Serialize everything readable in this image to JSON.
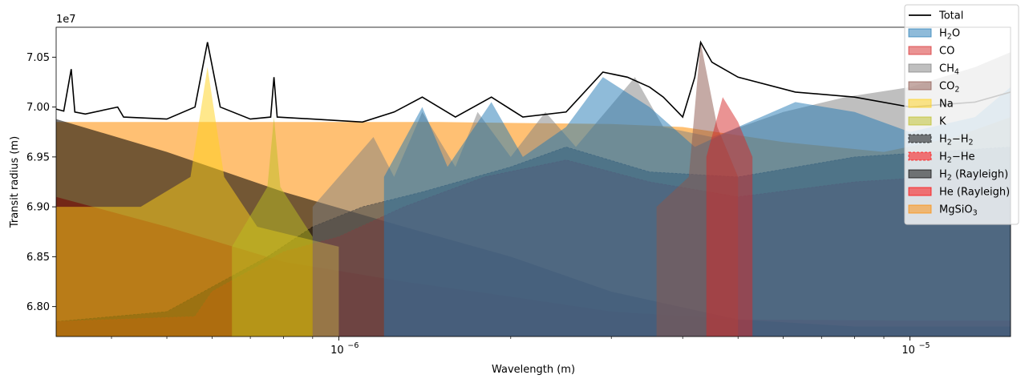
{
  "chart_data": {
    "type": "area",
    "x_scale": "log",
    "xlim": [
      3.2e-07,
      1.5e-05
    ],
    "ylim": [
      67700000,
      70800000
    ],
    "xlabel": "Wavelength (m)",
    "ylabel": "Transit radius (m)",
    "y_offset_label": "1e7",
    "x_ticks": [
      {
        "value": 1e-06,
        "label": "10",
        "exp": "−6"
      },
      {
        "value": 1e-05,
        "label": "10",
        "exp": "−5"
      }
    ],
    "y_ticks": [
      {
        "value": 68000000,
        "label": "6.80"
      },
      {
        "value": 68500000,
        "label": "6.85"
      },
      {
        "value": 69000000,
        "label": "6.90"
      },
      {
        "value": 69500000,
        "label": "6.95"
      },
      {
        "value": 70000000,
        "label": "7.00"
      },
      {
        "value": 70500000,
        "label": "7.05"
      }
    ],
    "legend_position": "upper right",
    "legend": [
      {
        "key": "total",
        "label": "Total"
      },
      {
        "key": "h2o",
        "label": "H",
        "sub": "2",
        "rest": "O"
      },
      {
        "key": "co",
        "label": "CO"
      },
      {
        "key": "ch4",
        "label": "CH",
        "sub": "4"
      },
      {
        "key": "co2",
        "label": "CO",
        "sub": "2"
      },
      {
        "key": "na",
        "label": "Na"
      },
      {
        "key": "k",
        "label": "K"
      },
      {
        "key": "h2h2",
        "label": "H",
        "sub": "2",
        "rest": "−H",
        "sub2": "2"
      },
      {
        "key": "h2he",
        "label": "H",
        "sub": "2",
        "rest": "−He"
      },
      {
        "key": "h2ray",
        "label": "H",
        "sub": "2",
        "rest": " (Rayleigh)"
      },
      {
        "key": "heray",
        "label": "He (Rayleigh)"
      },
      {
        "key": "mgsio3",
        "label": "MgSiO",
        "sub": "3"
      }
    ],
    "colors": {
      "total": "#000000",
      "h2o": "#1f77b4",
      "co": "#d62728",
      "ch4": "#7f7f7f",
      "co2": "#8c564b",
      "na": "#ffd11a",
      "k": "#bcbd22",
      "h2h2": "#000000",
      "h2he": "#ff0000",
      "h2ray": "#000000",
      "heray": "#ff0000",
      "mgsio3": "#ff8c00"
    },
    "series": [
      {
        "key": "mgsio3",
        "name": "MgSiO3",
        "points": [
          [
            3.2e-07,
            69850000
          ],
          [
            6e-07,
            69850000
          ],
          [
            1.5e-06,
            69850000
          ],
          [
            3e-06,
            69830000
          ],
          [
            4e-06,
            69800000
          ],
          [
            6e-06,
            69650000
          ],
          [
            9e-06,
            69550000
          ],
          [
            1.2e-05,
            69700000
          ],
          [
            1.5e-05,
            69900000
          ]
        ]
      },
      {
        "key": "heray",
        "name": "He (Rayleigh)",
        "points": [
          [
            3.2e-07,
            69100000
          ],
          [
            5e-07,
            68800000
          ],
          [
            8e-07,
            68450000
          ],
          [
            1.3e-06,
            68250000
          ],
          [
            2e-06,
            68100000
          ],
          [
            3e-06,
            67950000
          ],
          [
            5e-06,
            67870000
          ],
          [
            1e-05,
            67860000
          ],
          [
            1.5e-05,
            67860000
          ]
        ]
      },
      {
        "key": "h2ray",
        "name": "H2 (Rayleigh)",
        "points": [
          [
            3.2e-07,
            69880000
          ],
          [
            5e-07,
            69550000
          ],
          [
            8e-07,
            69150000
          ],
          [
            1.3e-06,
            68800000
          ],
          [
            2e-06,
            68500000
          ],
          [
            3e-06,
            68150000
          ],
          [
            5e-06,
            67870000
          ],
          [
            8e-06,
            67800000
          ],
          [
            1.5e-05,
            67800000
          ]
        ]
      },
      {
        "key": "h2he",
        "name": "H2−He",
        "points": [
          [
            3.2e-07,
            67850000
          ],
          [
            5.6e-07,
            67900000
          ],
          [
            6e-07,
            68150000
          ],
          [
            8e-07,
            68550000
          ],
          [
            1e-06,
            68700000
          ],
          [
            1.3e-06,
            69000000
          ],
          [
            1.8e-06,
            69300000
          ],
          [
            2.5e-06,
            69470000
          ],
          [
            3.5e-06,
            69250000
          ],
          [
            5e-06,
            69100000
          ],
          [
            8e-06,
            69250000
          ],
          [
            1.5e-05,
            69350000
          ]
        ]
      },
      {
        "key": "h2h2",
        "name": "H2−H2",
        "points": [
          [
            3.2e-07,
            67850000
          ],
          [
            5e-07,
            67950000
          ],
          [
            7.5e-07,
            68500000
          ],
          [
            9e-07,
            68800000
          ],
          [
            1.1e-06,
            69000000
          ],
          [
            1.4e-06,
            69150000
          ],
          [
            2e-06,
            69400000
          ],
          [
            2.5e-06,
            69600000
          ],
          [
            3.5e-06,
            69350000
          ],
          [
            5e-06,
            69300000
          ],
          [
            8e-06,
            69500000
          ],
          [
            1.5e-05,
            69600000
          ]
        ]
      },
      {
        "key": "na",
        "name": "Na",
        "points": [
          [
            3.2e-07,
            69000000
          ],
          [
            4.5e-07,
            69000000
          ],
          [
            5.5e-07,
            69300000
          ],
          [
            5.89e-07,
            70400000
          ],
          [
            6.3e-07,
            69300000
          ],
          [
            7.2e-07,
            68800000
          ],
          [
            1e-06,
            68600000
          ]
        ]
      },
      {
        "key": "k",
        "name": "K",
        "points": [
          [
            6.5e-07,
            68600000
          ],
          [
            7.5e-07,
            69200000
          ],
          [
            7.7e-07,
            69900000
          ],
          [
            7.9e-07,
            69200000
          ],
          [
            9e-07,
            68700000
          ]
        ]
      },
      {
        "key": "ch4",
        "name": "CH4",
        "points": [
          [
            9e-07,
            69000000
          ],
          [
            1e-06,
            69300000
          ],
          [
            1.15e-06,
            69700000
          ],
          [
            1.25e-06,
            69300000
          ],
          [
            1.4e-06,
            69950000
          ],
          [
            1.6e-06,
            69400000
          ],
          [
            1.75e-06,
            69950000
          ],
          [
            2e-06,
            69500000
          ],
          [
            2.3e-06,
            69950000
          ],
          [
            2.6e-06,
            69600000
          ],
          [
            3.3e-06,
            70300000
          ],
          [
            3.7e-06,
            69800000
          ],
          [
            4.5e-06,
            69700000
          ],
          [
            6e-06,
            69950000
          ],
          [
            7.7e-06,
            70100000
          ],
          [
            1e-05,
            70200000
          ],
          [
            1.3e-05,
            70400000
          ],
          [
            1.5e-05,
            70550000
          ]
        ]
      },
      {
        "key": "h2o",
        "name": "H2O",
        "points": [
          [
            1.2e-06,
            69300000
          ],
          [
            1.4e-06,
            70000000
          ],
          [
            1.55e-06,
            69400000
          ],
          [
            1.85e-06,
            70050000
          ],
          [
            2.1e-06,
            69500000
          ],
          [
            2.5e-06,
            69800000
          ],
          [
            2.9e-06,
            70300000
          ],
          [
            3.5e-06,
            70000000
          ],
          [
            4.2e-06,
            69600000
          ],
          [
            5e-06,
            69800000
          ],
          [
            6.3e-06,
            70050000
          ],
          [
            8e-06,
            69950000
          ],
          [
            1e-05,
            69750000
          ],
          [
            1.3e-05,
            69900000
          ],
          [
            1.5e-05,
            70200000
          ]
        ]
      },
      {
        "key": "co2",
        "name": "CO2",
        "points": [
          [
            3.6e-06,
            69000000
          ],
          [
            4.1e-06,
            69300000
          ],
          [
            4.3e-06,
            70650000
          ],
          [
            4.6e-06,
            69800000
          ],
          [
            5e-06,
            69300000
          ]
        ]
      },
      {
        "key": "co",
        "name": "CO",
        "points": [
          [
            4.4e-06,
            69500000
          ],
          [
            4.7e-06,
            70100000
          ],
          [
            5e-06,
            69850000
          ],
          [
            5.3e-06,
            69500000
          ]
        ]
      },
      {
        "key": "total",
        "name": "Total",
        "points": [
          [
            3.2e-07,
            69980000
          ],
          [
            3.3e-07,
            69960000
          ],
          [
            3.4e-07,
            70380000
          ],
          [
            3.45e-07,
            69950000
          ],
          [
            3.6e-07,
            69930000
          ],
          [
            4.1e-07,
            70000000
          ],
          [
            4.2e-07,
            69900000
          ],
          [
            5e-07,
            69880000
          ],
          [
            5.6e-07,
            70000000
          ],
          [
            5.89e-07,
            70650000
          ],
          [
            6.2e-07,
            70000000
          ],
          [
            7e-07,
            69880000
          ],
          [
            7.6e-07,
            69900000
          ],
          [
            7.7e-07,
            70300000
          ],
          [
            7.8e-07,
            69900000
          ],
          [
            9e-07,
            69880000
          ],
          [
            1.1e-06,
            69850000
          ],
          [
            1.25e-06,
            69950000
          ],
          [
            1.4e-06,
            70100000
          ],
          [
            1.6e-06,
            69900000
          ],
          [
            1.85e-06,
            70100000
          ],
          [
            2.1e-06,
            69900000
          ],
          [
            2.5e-06,
            69950000
          ],
          [
            2.9e-06,
            70350000
          ],
          [
            3.2e-06,
            70300000
          ],
          [
            3.5e-06,
            70200000
          ],
          [
            3.7e-06,
            70100000
          ],
          [
            4e-06,
            69900000
          ],
          [
            4.2e-06,
            70300000
          ],
          [
            4.3e-06,
            70650000
          ],
          [
            4.5e-06,
            70450000
          ],
          [
            5e-06,
            70300000
          ],
          [
            6.3e-06,
            70150000
          ],
          [
            8e-06,
            70100000
          ],
          [
            1e-05,
            70000000
          ],
          [
            1.3e-05,
            70050000
          ],
          [
            1.5e-05,
            70150000
          ]
        ]
      }
    ]
  }
}
